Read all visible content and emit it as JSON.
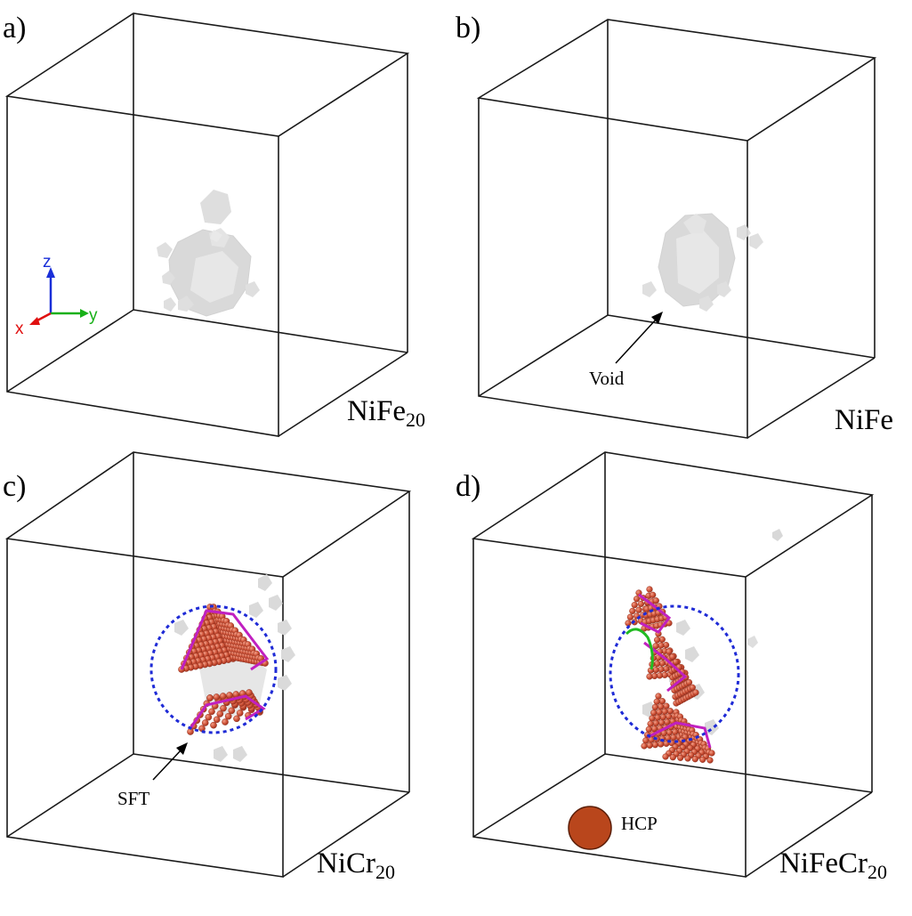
{
  "panels": [
    {
      "id": "a",
      "label": "a)",
      "material": "NiFe",
      "sub": "20"
    },
    {
      "id": "b",
      "label": "b)",
      "material": "NiFe",
      "sub": ""
    },
    {
      "id": "c",
      "label": "c)",
      "material": "NiCr",
      "sub": "20"
    },
    {
      "id": "d",
      "label": "d)",
      "material": "NiFeCr",
      "sub": "20"
    }
  ],
  "annotations": {
    "void": "Void",
    "sft": "SFT",
    "legend_hcp": "HCP"
  },
  "axes": {
    "x": "x",
    "y": "y",
    "z": "z"
  },
  "colors": {
    "void_cluster": "#d9d9d9",
    "hcp_atom": "#c8502f",
    "hcp_legend": "#b9461c",
    "stacking_fault_line": "#c020c0",
    "dislocation_green": "#22bb22",
    "highlight_circle": "#1f2bd6",
    "axis_x": "#e01010",
    "axis_y": "#18b018",
    "axis_z": "#1a2fd8"
  }
}
